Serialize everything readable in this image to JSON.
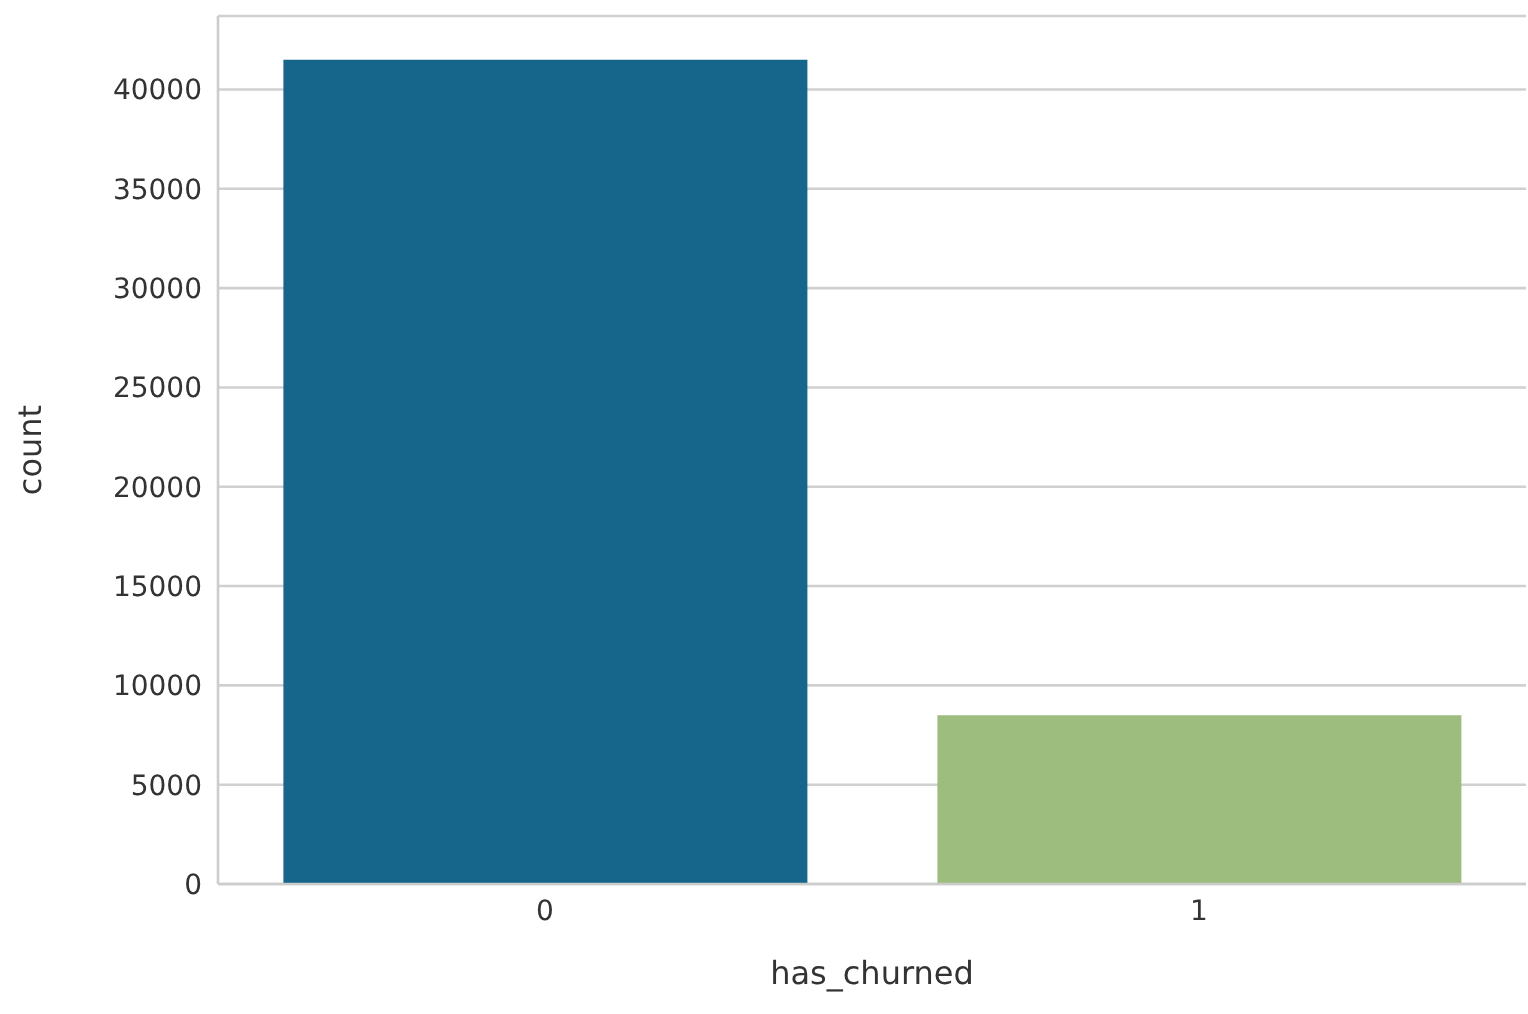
{
  "chart_data": {
    "type": "bar",
    "xlabel": "has_churned",
    "ylabel": "count",
    "categories": [
      "0",
      "1"
    ],
    "values": [
      41500,
      8500
    ],
    "colors": [
      "#16668c",
      "#9dbd7f"
    ],
    "ylim": [
      0,
      43700
    ],
    "yticks": [
      0,
      5000,
      10000,
      15000,
      20000,
      25000,
      30000,
      35000,
      40000
    ],
    "grid": "y"
  }
}
